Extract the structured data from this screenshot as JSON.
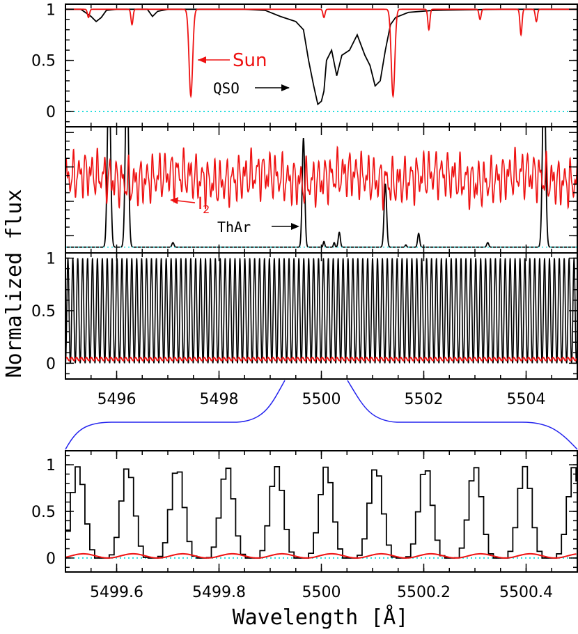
{
  "colors": {
    "qso": "#000000",
    "sun": "#ee1111",
    "zero": "#22dddd",
    "zoom": "#2222ee"
  },
  "labels": {
    "ylabel": "Normalized flux",
    "xlabel": "Wavelength [Å]",
    "sun": "Sun",
    "qso": "QSO",
    "i2": "I",
    "i2_sub": "2",
    "thar": "ThAr"
  },
  "chart_data": [
    {
      "type": "line",
      "panel": "top",
      "ylim": [
        -0.15,
        1.05
      ],
      "xlim": [
        5495,
        5505
      ],
      "yticks": [
        {
          "v": 0,
          "label": "0"
        },
        {
          "v": 0.5,
          "label": "0.5"
        },
        {
          "v": 1,
          "label": "1"
        }
      ],
      "series": [
        {
          "name": "Sun",
          "continuum": 1.0,
          "lines": [
            [
              5497.45,
              0.85,
              0.035
            ],
            [
              5501.4,
              0.85,
              0.035
            ],
            [
              5496.3,
              0.15,
              0.02
            ],
            [
              5502.1,
              0.2,
              0.02
            ],
            [
              5503.9,
              0.25,
              0.02
            ],
            [
              5504.2,
              0.12,
              0.02
            ],
            [
              5495.45,
              0.08,
              0.02
            ],
            [
              5500.05,
              0.08,
              0.02
            ],
            [
              5503.1,
              0.1,
              0.02
            ]
          ]
        },
        {
          "name": "QSO",
          "points": [
            [
              5495,
              1
            ],
            [
              5495.3,
              1
            ],
            [
              5495.5,
              0.93
            ],
            [
              5495.6,
              0.88
            ],
            [
              5495.7,
              0.92
            ],
            [
              5495.8,
              0.99
            ],
            [
              5496.0,
              1
            ],
            [
              5496.6,
              1
            ],
            [
              5496.7,
              0.93
            ],
            [
              5496.8,
              0.98
            ],
            [
              5497.0,
              1
            ],
            [
              5498.5,
              1
            ],
            [
              5498.9,
              0.99
            ],
            [
              5499.2,
              0.93
            ],
            [
              5499.5,
              0.88
            ],
            [
              5499.65,
              0.8
            ],
            [
              5499.75,
              0.5
            ],
            [
              5499.85,
              0.25
            ],
            [
              5499.93,
              0.07
            ],
            [
              5500.0,
              0.1
            ],
            [
              5500.05,
              0.2
            ],
            [
              5500.1,
              0.5
            ],
            [
              5500.2,
              0.6
            ],
            [
              5500.3,
              0.35
            ],
            [
              5500.4,
              0.55
            ],
            [
              5500.55,
              0.6
            ],
            [
              5500.7,
              0.75
            ],
            [
              5500.85,
              0.55
            ],
            [
              5500.95,
              0.45
            ],
            [
              5501.05,
              0.25
            ],
            [
              5501.15,
              0.3
            ],
            [
              5501.25,
              0.6
            ],
            [
              5501.35,
              0.85
            ],
            [
              5501.45,
              0.92
            ],
            [
              5501.7,
              0.97
            ],
            [
              5502.2,
              0.99
            ],
            [
              5503.5,
              1
            ],
            [
              5505,
              1
            ]
          ]
        }
      ],
      "zero_line": 0
    },
    {
      "type": "line",
      "panel": "middle",
      "ylim": [
        -0.05,
        1.05
      ],
      "xlim": [
        5495,
        5505
      ],
      "series": [
        {
          "name": "I2",
          "base": 0.6,
          "amp": 0.13,
          "period": 0.12
        },
        {
          "name": "ThAr",
          "peaks": [
            [
              5495.85,
              1.6,
              0.03
            ],
            [
              5496.2,
              1.6,
              0.03
            ],
            [
              5497.1,
              0.04,
              0.02
            ],
            [
              5499.65,
              0.95,
              0.025
            ],
            [
              5500.05,
              0.05,
              0.015
            ],
            [
              5500.25,
              0.04,
              0.015
            ],
            [
              5500.35,
              0.13,
              0.02
            ],
            [
              5501.25,
              0.55,
              0.025
            ],
            [
              5501.65,
              0.02,
              0.015
            ],
            [
              5501.9,
              0.12,
              0.02
            ],
            [
              5503.25,
              0.04,
              0.02
            ],
            [
              5504.35,
              1.6,
              0.03
            ]
          ]
        }
      ]
    },
    {
      "type": "line",
      "panel": "comb",
      "ylim": [
        -0.15,
        1.05
      ],
      "xlim": [
        5495,
        5505
      ],
      "yticks": [
        {
          "v": 0,
          "label": "0"
        },
        {
          "v": 0.5,
          "label": "0.5"
        },
        {
          "v": 1,
          "label": "1"
        }
      ],
      "xticks": [
        {
          "v": 5496,
          "label": "5496"
        },
        {
          "v": 5498,
          "label": "5498"
        },
        {
          "v": 5500,
          "label": "5500"
        },
        {
          "v": 5502,
          "label": "5502"
        },
        {
          "v": 5504,
          "label": "5504"
        }
      ],
      "series": [
        {
          "name": "comb",
          "period": 0.096,
          "peak": 1.0
        },
        {
          "name": "comb-background",
          "level": 0.04
        }
      ]
    },
    {
      "type": "line",
      "panel": "zoom",
      "ylim": [
        -0.15,
        1.15
      ],
      "xlim": [
        5499.5,
        5500.5
      ],
      "yticks": [
        {
          "v": 0,
          "label": "0"
        },
        {
          "v": 0.5,
          "label": "0.5"
        },
        {
          "v": 1,
          "label": "1"
        }
      ],
      "xticks": [
        {
          "v": 5499.6,
          "label": "5499.6"
        },
        {
          "v": 5499.8,
          "label": "5499.8"
        },
        {
          "v": 5500,
          "label": "5500"
        },
        {
          "v": 5500.2,
          "label": "5500.2"
        },
        {
          "v": 5500.4,
          "label": "5500.4"
        }
      ],
      "series": [
        {
          "name": "comb-zoom",
          "period": 0.097,
          "first_peak": 5499.52,
          "peak": 1.0
        },
        {
          "name": "comb-zoom-background",
          "amp": 0.045
        },
        {
          "name": "zero",
          "value": 0
        }
      ]
    }
  ]
}
